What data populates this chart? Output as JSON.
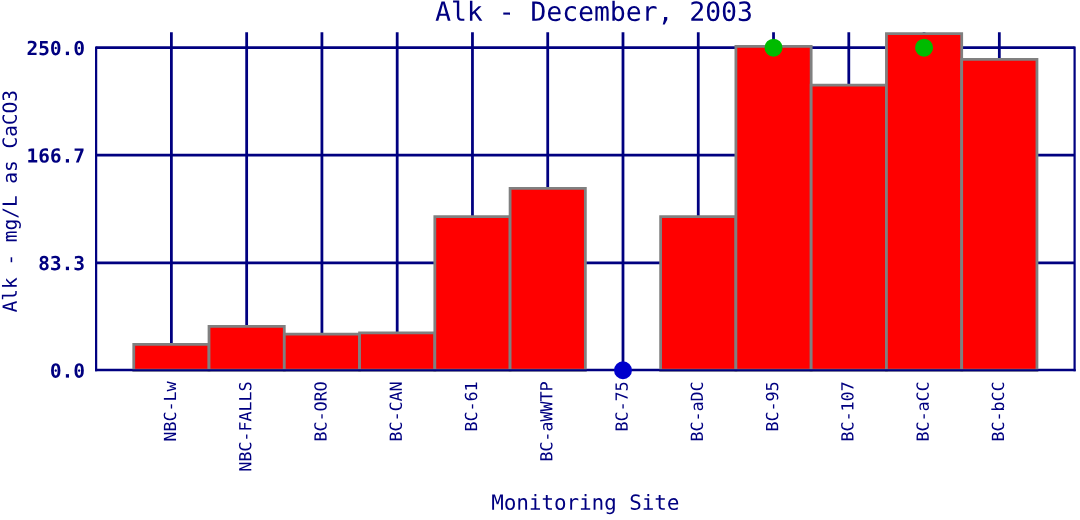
{
  "chart_data": {
    "type": "bar",
    "title": "Alk - December, 2003",
    "xlabel": "Monitoring Site",
    "ylabel": "Alk - mg/L as CaCO3",
    "categories": [
      "NBC-Lw",
      "NBC-FALLS",
      "BC-ORO",
      "BC-CAN",
      "BC-61",
      "BC-aWWTP",
      "BC-75",
      "BC-aDC",
      "BC-95",
      "BC-107",
      "BC-aCC",
      "BC-bCC"
    ],
    "series": [
      {
        "color": "#ff0000",
        "values": [
          20,
          34,
          28,
          29,
          119,
          141,
          null,
          119,
          251,
          221,
          261,
          241
        ]
      },
      {
        "type": "scatter",
        "color": "#0000cc",
        "values": [
          null,
          null,
          null,
          null,
          null,
          null,
          0,
          null,
          null,
          null,
          null,
          null
        ]
      },
      {
        "type": "scatter",
        "color": "#00bb00",
        "values": [
          null,
          null,
          null,
          null,
          null,
          null,
          null,
          null,
          250,
          null,
          250,
          null
        ]
      }
    ],
    "ylim": [
      0,
      262
    ],
    "yticks": [
      {
        "value": 0,
        "label": "0.0"
      },
      {
        "value": 83.3,
        "label": "83.3"
      },
      {
        "value": 166.7,
        "label": "166.7"
      },
      {
        "value": 250,
        "label": "250.0"
      }
    ],
    "grid": true,
    "marker": "circle"
  }
}
